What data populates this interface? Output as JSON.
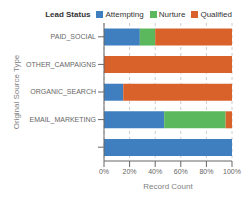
{
  "chart_data": {
    "type": "bar",
    "orientation": "horizontal",
    "stacked": true,
    "categories": [
      null,
      "EMAIL_MARKETING",
      "ORGANIC_SEARCH",
      "OTHER_CAMPAIGNS",
      "PAID_SOCIAL"
    ],
    "series": [
      {
        "name": "Attempting",
        "color": "#3f7fbf",
        "values": [
          100,
          47,
          15,
          0,
          28
        ]
      },
      {
        "name": "Nurture",
        "color": "#5cb85c",
        "values": [
          0,
          48,
          0,
          0,
          12
        ]
      },
      {
        "name": "Qualified",
        "color": "#d9622b",
        "values": [
          0,
          5,
          85,
          100,
          60
        ]
      }
    ],
    "xlabel": "Record Count",
    "ylabel": "Original Source Type",
    "xlim": [
      0,
      100
    ],
    "xticks": [
      {
        "value": 0,
        "label": "0%"
      },
      {
        "value": 20,
        "label": "20%"
      },
      {
        "value": 40,
        "label": "40%"
      },
      {
        "value": 60,
        "label": "60%"
      },
      {
        "value": 80,
        "label": "80%"
      },
      {
        "value": 100,
        "label": "100%"
      }
    ],
    "grid": true,
    "legend": "upper right",
    "legend_title": "Lead Status"
  }
}
